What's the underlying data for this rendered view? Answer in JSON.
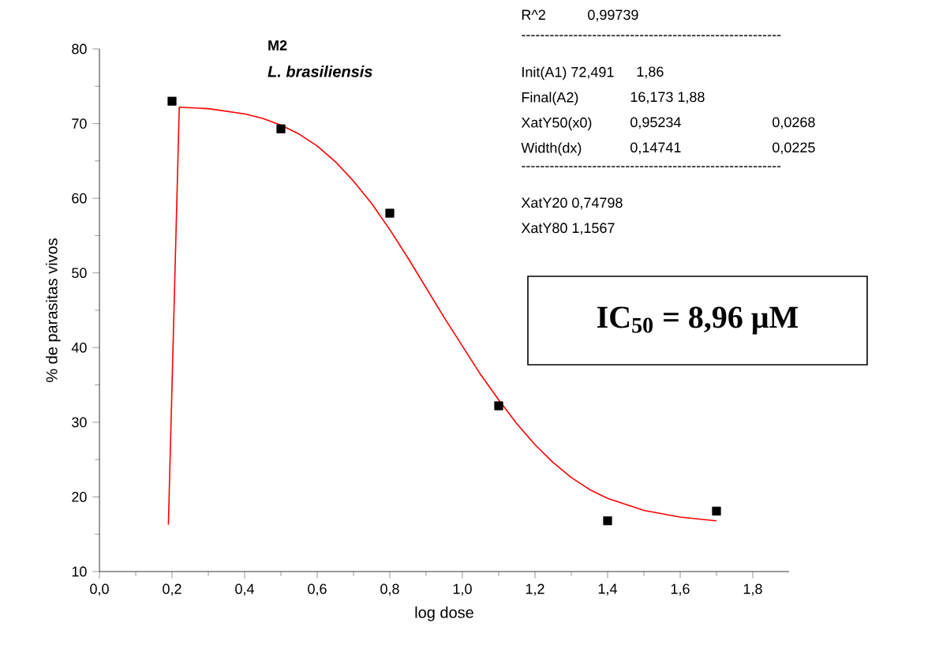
{
  "chart_data": {
    "type": "scatter",
    "title": "M2",
    "subtitle": "*L. brasiliensis*",
    "xlabel": "log dose",
    "ylabel": "% de parasitas vivos",
    "annotations": [
      "R^2",
      "0,99739",
      "-------------------------------------------------------",
      "Init(A1) 72,491",
      "1,86",
      "Final(A2)",
      "16,173  1,88",
      "XatY50(x0)",
      "0,95234",
      "0,0268",
      "Width(dx)",
      "0,14741",
      "0,0225",
      "-------------------------------------------------------",
      "XatY20 0,74798",
      "XatY80 1,1567",
      "**IC$_{50}$ = 8,96 μM**"
    ],
    "xlim": [
      0,
      1.9
    ],
    "ylim": [
      10,
      80
    ],
    "xticks": [
      {
        "value": 0,
        "label": "0,0"
      },
      {
        "value": 0.2,
        "label": "0,2"
      },
      {
        "value": 0.4,
        "label": "0,4"
      },
      {
        "value": 0.6,
        "label": "0,6"
      },
      {
        "value": 0.8,
        "label": "0,8"
      },
      {
        "value": 1.0,
        "label": "1,0"
      },
      {
        "value": 1.2,
        "label": "1,2"
      },
      {
        "value": 1.4,
        "label": "1,4"
      },
      {
        "value": 1.6,
        "label": "1,6"
      },
      {
        "value": 1.8,
        "label": "1,8"
      }
    ],
    "yticks": [
      10,
      20,
      30,
      40,
      50,
      60,
      70,
      80
    ],
    "series": [
      {
        "color": "#000000",
        "marker": "square",
        "x": [
          0.2,
          0.5,
          0.8,
          1.1,
          1.4,
          1.7
        ],
        "values": [
          73,
          69.3,
          58,
          32.2,
          16.8,
          18.1
        ]
      },
      {
        "type": "line",
        "color": "#ff0000",
        "marker": "none",
        "line_style": "solid",
        "x": [
          0.19,
          0.22,
          0.3,
          0.4,
          0.45,
          0.5,
          0.55,
          0.6,
          0.65,
          0.7,
          0.75,
          0.8,
          0.85,
          0.9,
          0.95,
          1.0,
          1.05,
          1.1,
          1.15,
          1.2,
          1.25,
          1.3,
          1.35,
          1.4,
          1.5,
          1.6,
          1.7
        ],
        "values": [
          16.3,
          72.2,
          72.0,
          71.3,
          70.7,
          69.8,
          68.6,
          67.0,
          64.9,
          62.3,
          59.3,
          55.8,
          52.0,
          48.0,
          44.0,
          40.2,
          36.4,
          33.0,
          29.8,
          27.0,
          24.6,
          22.6,
          21.0,
          19.8,
          18.2,
          17.3,
          16.8
        ]
      }
    ]
  }
}
